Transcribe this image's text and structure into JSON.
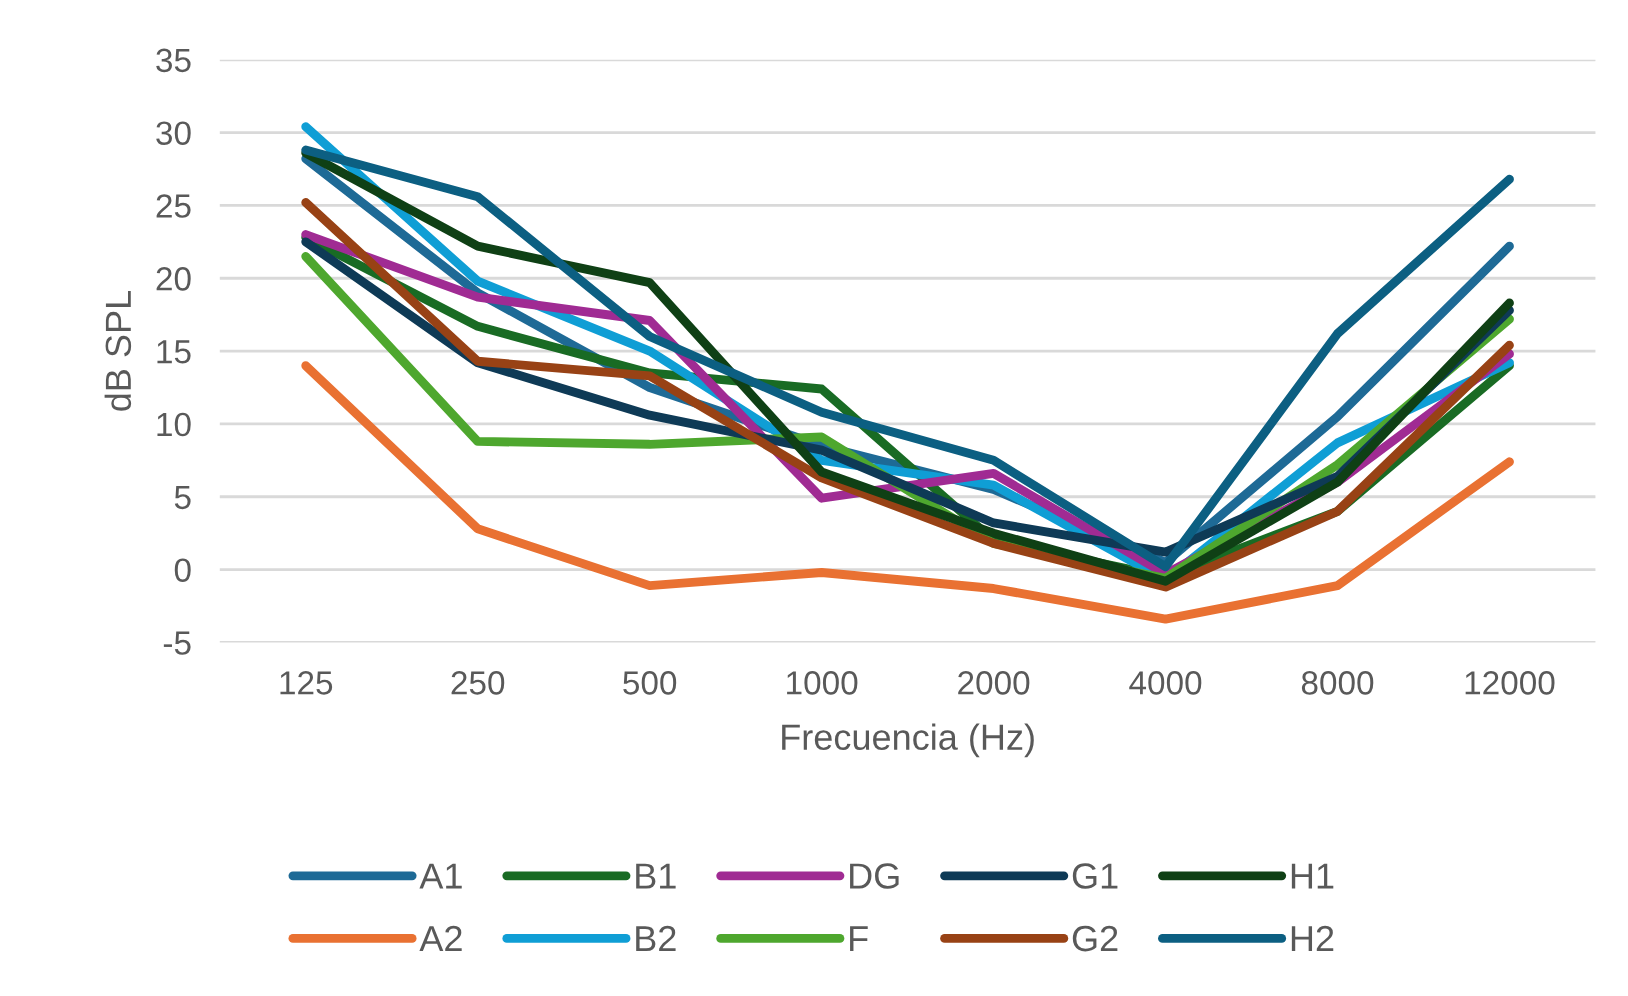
{
  "chart_data": {
    "type": "line",
    "xlabel": "Frecuencia (Hz)",
    "ylabel": "dB SPL",
    "categories": [
      "125",
      "250",
      "500",
      "1000",
      "2000",
      "4000",
      "8000",
      "12000"
    ],
    "ylim": [
      -5,
      35
    ],
    "yticks": [
      -5,
      0,
      5,
      10,
      15,
      20,
      25,
      30,
      35
    ],
    "grid": "y",
    "legend": "bottom",
    "marker": "none",
    "line_style": "solid",
    "series": [
      {
        "name": "A1",
        "color": "#1e6a96",
        "values": [
          28.2,
          19,
          12.5,
          8.5,
          5.5,
          0.5,
          10.5,
          22.2
        ]
      },
      {
        "name": "A2",
        "color": "#e97132",
        "values": [
          14,
          2.8,
          -1.1,
          -0.2,
          -1.3,
          -3.4,
          -1.1,
          7.4
        ]
      },
      {
        "name": "B1",
        "color": "#196b24",
        "values": [
          22.8,
          16.7,
          13.5,
          12.4,
          2,
          -0.5,
          4,
          14
        ]
      },
      {
        "name": "B2",
        "color": "#0f9ed5",
        "values": [
          30.4,
          19.8,
          15,
          7.5,
          5.8,
          -0.7,
          8.7,
          14.2
        ]
      },
      {
        "name": "DG",
        "color": "#a02b93",
        "values": [
          23,
          18.7,
          17.1,
          4.9,
          6.6,
          -0.3,
          6,
          14.8
        ]
      },
      {
        "name": "F",
        "color": "#4ea72e",
        "values": [
          21.5,
          8.8,
          8.6,
          9.1,
          1.8,
          -0.6,
          7.2,
          17.2
        ]
      },
      {
        "name": "G1",
        "color": "#0e3a56",
        "values": [
          22.5,
          14.2,
          10.6,
          8.2,
          3.2,
          1.2,
          6.4,
          17.8
        ]
      },
      {
        "name": "G2",
        "color": "#984215",
        "values": [
          25.2,
          14.3,
          13.3,
          6.3,
          1.8,
          -1.2,
          4,
          15.4
        ]
      },
      {
        "name": "H1",
        "color": "#0f4015",
        "values": [
          28.6,
          22.2,
          19.7,
          6.7,
          2.5,
          -0.8,
          6,
          18.3
        ]
      },
      {
        "name": "H2",
        "color": "#0c5f82",
        "values": [
          28.8,
          25.6,
          16,
          10.8,
          7.5,
          0.2,
          16.2,
          26.8
        ]
      }
    ]
  }
}
